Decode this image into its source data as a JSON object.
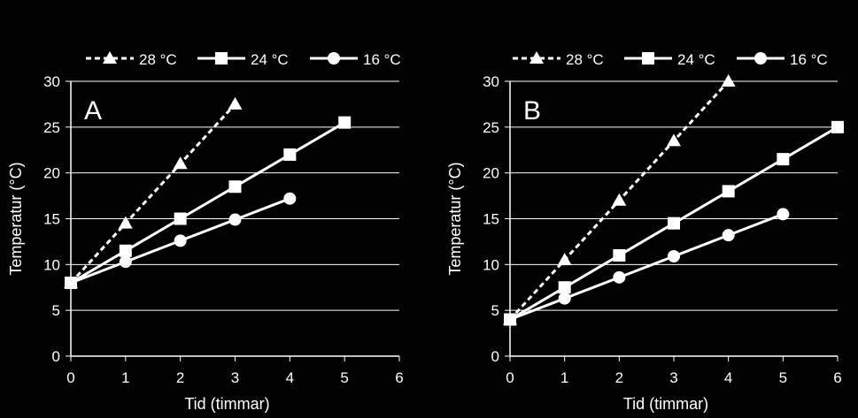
{
  "chart_data": [
    {
      "type": "line",
      "panel_label": "A",
      "title": "",
      "xlabel": "Tid (timmar)",
      "ylabel": "Temperatur (°C)",
      "xlim": [
        0,
        6
      ],
      "ylim": [
        0,
        30
      ],
      "xticks": [
        0,
        1,
        2,
        3,
        4,
        5,
        6
      ],
      "yticks": [
        0,
        5,
        10,
        15,
        20,
        25,
        30
      ],
      "grid": "horizontal",
      "legend_position": "top",
      "series": [
        {
          "name": "28 °C",
          "marker": "triangle",
          "dashed": true,
          "x": [
            0,
            1,
            2,
            3
          ],
          "values": [
            8,
            14.5,
            21,
            27.5
          ]
        },
        {
          "name": "24 °C",
          "marker": "square",
          "dashed": false,
          "x": [
            0,
            1,
            2,
            3,
            4,
            5
          ],
          "values": [
            8,
            11.5,
            15,
            18.5,
            22,
            25.5
          ]
        },
        {
          "name": "16 °C",
          "marker": "circle",
          "dashed": false,
          "x": [
            0,
            1,
            2,
            3,
            4
          ],
          "values": [
            8,
            10.3,
            12.6,
            14.9,
            17.2
          ]
        }
      ]
    },
    {
      "type": "line",
      "panel_label": "B",
      "title": "",
      "xlabel": "Tid (timmar)",
      "ylabel": "Temperatur (°C)",
      "xlim": [
        0,
        6
      ],
      "ylim": [
        0,
        30
      ],
      "xticks": [
        0,
        1,
        2,
        3,
        4,
        5,
        6
      ],
      "yticks": [
        0,
        5,
        10,
        15,
        20,
        25,
        30
      ],
      "grid": "horizontal",
      "legend_position": "top",
      "series": [
        {
          "name": "28 °C",
          "marker": "triangle",
          "dashed": true,
          "x": [
            0,
            1,
            2,
            3,
            4
          ],
          "values": [
            4,
            10.5,
            17,
            23.5,
            30
          ]
        },
        {
          "name": "24 °C",
          "marker": "square",
          "dashed": false,
          "x": [
            0,
            1,
            2,
            3,
            4,
            5,
            6
          ],
          "values": [
            4,
            7.5,
            11,
            14.5,
            18,
            21.5,
            25
          ]
        },
        {
          "name": "16 °C",
          "marker": "circle",
          "dashed": false,
          "x": [
            0,
            1,
            2,
            3,
            4,
            5
          ],
          "values": [
            4,
            6.3,
            8.6,
            10.9,
            13.2,
            15.5
          ]
        }
      ]
    }
  ]
}
